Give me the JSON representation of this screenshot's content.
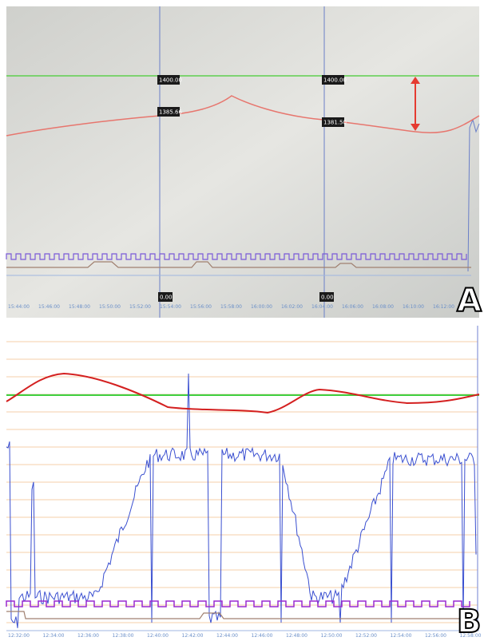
{
  "panels": [
    {
      "label": "A",
      "value_tags": [
        "1400.00",
        "1385.66",
        "1400.00",
        "1381.50"
      ],
      "zero_tags": [
        "0.00",
        "0.00"
      ],
      "time_labels": [
        "15:44:00",
        "15:46:00",
        "15:48:00",
        "15:50:00",
        "15:52:00",
        "15:54:00",
        "15:56:00",
        "15:58:00",
        "16:00:00",
        "16:02:00",
        "16:04:00",
        "16:06:00",
        "16:08:00",
        "16:10:00",
        "16:12:00"
      ]
    },
    {
      "label": "B",
      "time_labels": [
        "12:32:00",
        "12:34:00",
        "12:36:00",
        "12:38:00",
        "12:40:00",
        "12:42:00",
        "12:44:00",
        "12:46:00",
        "12:48:00",
        "12:50:00",
        "12:52:00",
        "12:54:00",
        "12:56:00",
        "12:58:00"
      ]
    }
  ]
}
